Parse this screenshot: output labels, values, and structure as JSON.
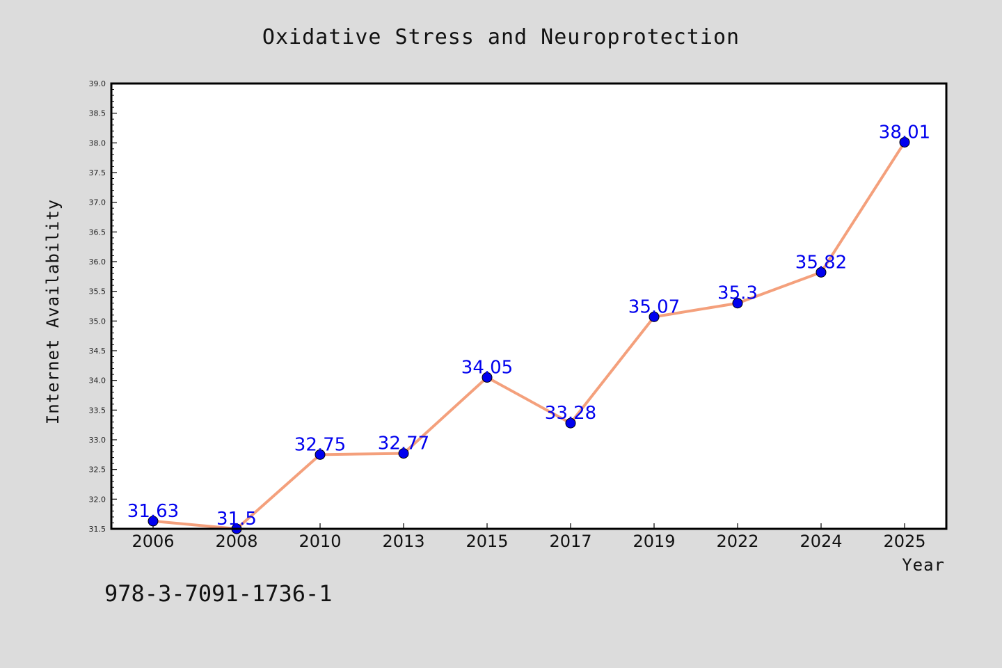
{
  "colors": {
    "background": "#dcdcdc",
    "plot_background": "#ffffff",
    "line": "#f4a07c",
    "marker": "#0000ee",
    "data_label": "#0000ee",
    "axis": "#000000"
  },
  "chart_data": {
    "type": "line",
    "title": "Oxidative Stress and Neuroprotection",
    "xlabel": "Year",
    "ylabel": "Internet Availability",
    "categories": [
      "2006",
      "2008",
      "2010",
      "2013",
      "2015",
      "2017",
      "2019",
      "2022",
      "2024",
      "2025"
    ],
    "series": [
      {
        "values": [
          31.63,
          31.5,
          32.75,
          32.77,
          34.05,
          33.28,
          35.07,
          35.3,
          35.82,
          38.01
        ],
        "labels": [
          "31.63",
          "31.5",
          "32.75",
          "32.77",
          "34.05",
          "33.28",
          "35.07",
          "35.3",
          "35.82",
          "38.01"
        ]
      }
    ],
    "ylim": [
      31.5,
      39.0
    ],
    "yticks": [
      "31.5",
      "32.0",
      "32.5",
      "33.0",
      "33.5",
      "34.0",
      "34.5",
      "35.0",
      "35.5",
      "36.0",
      "36.5",
      "37.0",
      "37.5",
      "38.0",
      "38.5",
      "39.0"
    ],
    "grid": false,
    "legend": "none"
  },
  "footer": {
    "isbn": "978-3-7091-1736-1"
  }
}
